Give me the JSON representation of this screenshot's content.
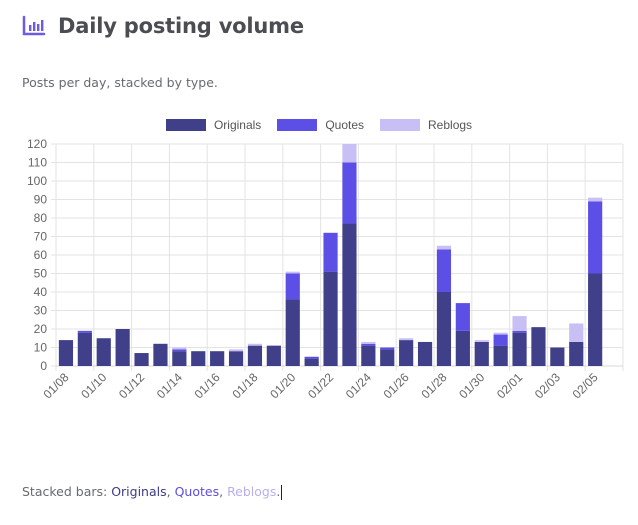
{
  "header": {
    "title": "Daily posting volume",
    "icon": "bar-chart-icon"
  },
  "subtitle": "Posts per day, stacked by type.",
  "caption": {
    "prefix": "Stacked bars: ",
    "originals": "Originals",
    "sep1": ", ",
    "quotes": "Quotes",
    "sep2": ", ",
    "reblogs": "Reblogs",
    "suffix": "."
  },
  "colors": {
    "originals": "#3f3f8a",
    "quotes": "#5b4fe6",
    "reblogs": "#c8c0f5",
    "accent": "#6b5be6"
  },
  "chart_data": {
    "type": "bar",
    "stacked": true,
    "title": "",
    "xlabel": "",
    "ylabel": "",
    "ylim": [
      0,
      120
    ],
    "yticks": [
      0,
      10,
      20,
      30,
      40,
      50,
      60,
      70,
      80,
      90,
      100,
      110,
      120
    ],
    "grid": true,
    "legend_position": "top",
    "categories": [
      "01/08",
      "01/09",
      "01/10",
      "01/11",
      "01/12",
      "01/13",
      "01/14",
      "01/15",
      "01/16",
      "01/17",
      "01/18",
      "01/19",
      "01/20",
      "01/21",
      "01/22",
      "01/23",
      "01/24",
      "01/25",
      "01/26",
      "01/27",
      "01/28",
      "01/29",
      "01/30",
      "01/31",
      "02/01",
      "02/02",
      "02/03",
      "02/04",
      "02/05"
    ],
    "xtick_labels": [
      "01/08",
      "01/10",
      "01/12",
      "01/14",
      "01/16",
      "01/18",
      "01/20",
      "01/22",
      "01/24",
      "01/26",
      "01/28",
      "01/30",
      "02/01",
      "02/03",
      "02/05"
    ],
    "series": [
      {
        "name": "Originals",
        "color": "#3f3f8a",
        "values": [
          14,
          18,
          15,
          20,
          7,
          12,
          8,
          8,
          8,
          8,
          11,
          11,
          36,
          4,
          51,
          77,
          11,
          9,
          14,
          13,
          40,
          19,
          13,
          11,
          18,
          21,
          10,
          13,
          50
        ]
      },
      {
        "name": "Quotes",
        "color": "#5b4fe6",
        "values": [
          0,
          1,
          0,
          0,
          0,
          0,
          1,
          0,
          0,
          0,
          0,
          0,
          14,
          1,
          21,
          33,
          1,
          1,
          0,
          0,
          23,
          15,
          0,
          6,
          1,
          0,
          0,
          0,
          39
        ]
      },
      {
        "name": "Reblogs",
        "color": "#c8c0f5",
        "values": [
          0,
          0,
          0,
          0,
          0,
          0,
          1,
          0,
          0,
          1,
          1,
          0,
          1,
          0,
          0,
          12,
          1,
          0,
          1,
          0,
          2,
          0,
          1,
          1,
          8,
          0,
          0,
          10,
          2
        ]
      }
    ]
  }
}
